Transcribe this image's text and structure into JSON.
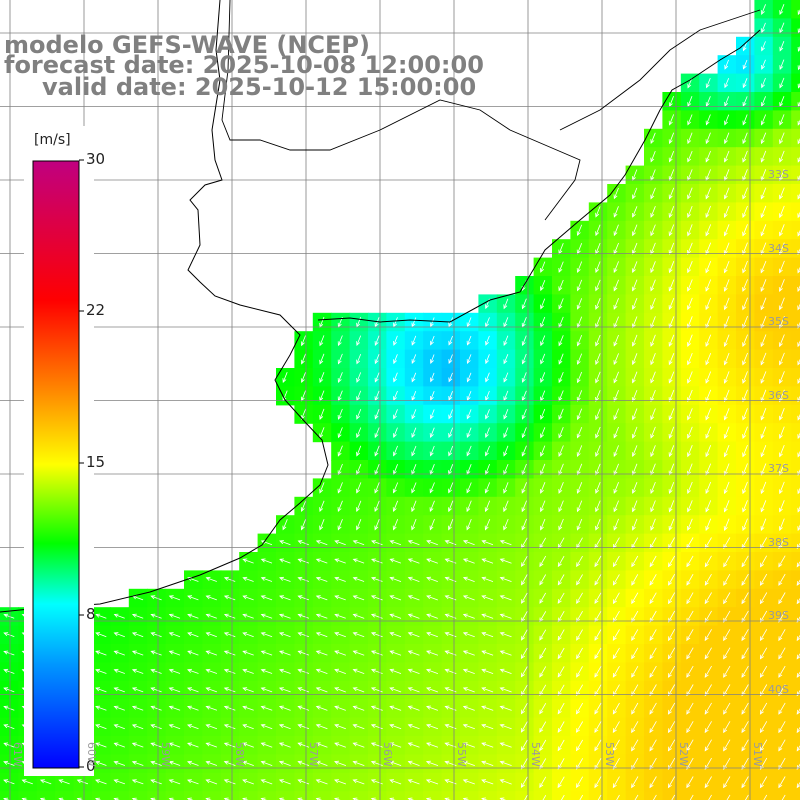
{
  "header": {
    "line1": "modelo GEFS-WAVE (NCEP)",
    "line2": "forecast date: 2025-10-08 12:00:00",
    "line3": "valid date: 2025-10-12 15:00:00"
  },
  "colorbar": {
    "unit": "[m/s]",
    "ticks": [
      "30",
      "22",
      "15",
      "8",
      "0"
    ],
    "min": 0,
    "max": 30,
    "colors": [
      "#0000ff",
      "#00ffff",
      "#00ff00",
      "#ffff00",
      "#ff8000",
      "#ff0000",
      "#c00080"
    ]
  },
  "lat_labels": [
    "33S",
    "34S",
    "35S",
    "36S",
    "37S",
    "38S",
    "39S",
    "40S"
  ],
  "lon_labels": [
    "61W",
    "60W",
    "59W",
    "58W",
    "57W",
    "56W",
    "55W",
    "54W",
    "53W",
    "52W",
    "51W"
  ],
  "map": {
    "land_color": "#ffffff",
    "coast_color": "#000000",
    "grid_color": "#808080",
    "arrow_color": "#ffffff"
  }
}
